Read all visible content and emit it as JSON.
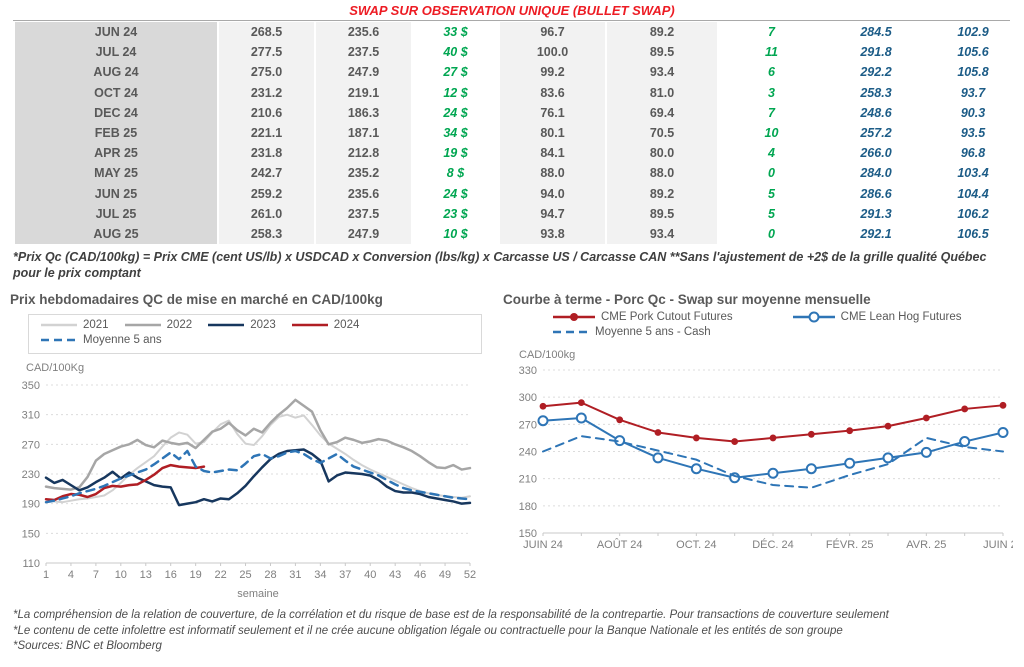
{
  "table": {
    "title": "SWAP SUR OBSERVATION UNIQUE (BULLET SWAP)",
    "title_color": "#ed1c24",
    "green": "#00a651",
    "blue": "#1c5c87",
    "rows": [
      [
        "JUN 24",
        "268.5",
        "235.6",
        "33 $",
        "96.7",
        "89.2",
        "7",
        "284.5",
        "102.9"
      ],
      [
        "JUL 24",
        "277.5",
        "237.5",
        "40 $",
        "100.0",
        "89.5",
        "11",
        "291.8",
        "105.6"
      ],
      [
        "AUG 24",
        "275.0",
        "247.9",
        "27 $",
        "99.2",
        "93.4",
        "6",
        "292.2",
        "105.8"
      ],
      [
        "OCT 24",
        "231.2",
        "219.1",
        "12 $",
        "83.6",
        "81.0",
        "3",
        "258.3",
        "93.7"
      ],
      [
        "DEC 24",
        "210.6",
        "186.3",
        "24 $",
        "76.1",
        "69.4",
        "7",
        "248.6",
        "90.3"
      ],
      [
        "FEB 25",
        "221.1",
        "187.1",
        "34 $",
        "80.1",
        "70.5",
        "10",
        "257.2",
        "93.5"
      ],
      [
        "APR 25",
        "231.8",
        "212.8",
        "19 $",
        "84.1",
        "80.0",
        "4",
        "266.0",
        "96.8"
      ],
      [
        "MAY 25",
        "242.7",
        "235.2",
        "8 $",
        "88.0",
        "88.0",
        "0",
        "284.0",
        "103.4"
      ],
      [
        "JUN 25",
        "259.2",
        "235.6",
        "24 $",
        "94.0",
        "89.2",
        "5",
        "286.6",
        "104.4"
      ],
      [
        "JUL 25",
        "261.0",
        "237.5",
        "23 $",
        "94.7",
        "89.5",
        "5",
        "291.3",
        "106.2"
      ],
      [
        "AUG 25",
        "258.3",
        "247.9",
        "10 $",
        "93.8",
        "93.4",
        "0",
        "292.1",
        "106.5"
      ]
    ],
    "footnote": "*Prix Qc (CAD/100kg) = Prix CME (cent US/lb) x USDCAD x Conversion (lbs/kg) x Carcasse US / Carcasse CAN **Sans l'ajustement de +2$ de la grille qualité Québec pour le prix comptant"
  },
  "chart_data": [
    {
      "type": "line",
      "title": "Prix hebdomadaires QC de mise en marché en CAD/100kg",
      "ylabel": "CAD/100Kg",
      "xlabel": "semaine",
      "ylim": [
        110,
        350
      ],
      "yticks": [
        110,
        150,
        190,
        230,
        270,
        310,
        350
      ],
      "xticks": [
        1,
        4,
        7,
        10,
        13,
        16,
        19,
        22,
        25,
        28,
        31,
        34,
        37,
        40,
        43,
        46,
        49,
        52
      ],
      "grid": true,
      "legend_position": "top",
      "series": [
        {
          "name": "2021",
          "color": "#d2d2d2",
          "style": "solid",
          "width": 2,
          "values": [
            196,
            193,
            192,
            194,
            196,
            197,
            199,
            201,
            208,
            218,
            229,
            238,
            246,
            254,
            267,
            279,
            286,
            283,
            271,
            273,
            286,
            297,
            302,
            284,
            271,
            269,
            281,
            296,
            307,
            310,
            306,
            309,
            296,
            282,
            271,
            264,
            257,
            249,
            242,
            236,
            231,
            226,
            221,
            216,
            211,
            207,
            204,
            202,
            200,
            199,
            198,
            200
          ]
        },
        {
          "name": "2022",
          "color": "#a6a6a6",
          "style": "solid",
          "width": 2.5,
          "values": [
            213,
            211,
            210,
            209,
            212,
            226,
            248,
            257,
            262,
            267,
            270,
            276,
            269,
            266,
            275,
            272,
            270,
            272,
            265,
            276,
            287,
            291,
            299,
            289,
            282,
            291,
            286,
            299,
            310,
            319,
            330,
            322,
            314,
            289,
            270,
            273,
            279,
            276,
            272,
            274,
            277,
            275,
            270,
            266,
            261,
            254,
            246,
            239,
            238,
            242,
            236,
            238
          ]
        },
        {
          "name": "2023",
          "color": "#17375e",
          "style": "solid",
          "width": 2.5,
          "values": [
            225,
            218,
            222,
            215,
            208,
            212,
            219,
            225,
            233,
            224,
            232,
            225,
            220,
            215,
            213,
            212,
            188,
            190,
            192,
            196,
            193,
            197,
            196,
            204,
            214,
            227,
            239,
            250,
            257,
            261,
            262,
            263,
            257,
            248,
            220,
            228,
            232,
            231,
            230,
            228,
            222,
            213,
            207,
            205,
            205,
            203,
            199,
            197,
            195,
            193,
            190,
            191
          ]
        },
        {
          "name": "2024",
          "color": "#b01e24",
          "style": "solid",
          "width": 2.5,
          "values": [
            196,
            195,
            200,
            203,
            202,
            199,
            203,
            211,
            214,
            213,
            215,
            216,
            222,
            229,
            238,
            242,
            240,
            239,
            238,
            240
          ]
        },
        {
          "name": "Moyenne 5 ans",
          "color": "#2e75b6",
          "style": "dashed",
          "width": 2.5,
          "values": [
            192,
            194,
            197,
            200,
            204,
            207,
            210,
            214,
            219,
            224,
            228,
            232,
            236,
            243,
            251,
            259,
            250,
            261,
            240,
            234,
            232,
            234,
            236,
            235,
            244,
            254,
            257,
            251,
            254,
            259,
            261,
            257,
            250,
            245,
            251,
            257,
            248,
            240,
            236,
            232,
            228,
            222,
            216,
            211,
            208,
            206,
            204,
            202,
            200,
            198,
            197,
            196
          ]
        }
      ]
    },
    {
      "type": "line",
      "title": "Courbe à terme - Porc Qc - Swap sur moyenne mensuelle",
      "ylabel": "CAD/100kg",
      "xlabel": "",
      "ylim": [
        150,
        330
      ],
      "yticks": [
        150,
        180,
        210,
        240,
        270,
        300,
        330
      ],
      "x_labels": [
        "JUIN 24",
        "AOÛT 24",
        "OCT. 24",
        "DÉC. 24",
        "FÉVR. 25",
        "AVR. 25",
        "JUIN 25"
      ],
      "grid": true,
      "legend_position": "top",
      "series": [
        {
          "name": "CME Pork Cutout Futures",
          "color": "#b01e24",
          "style": "solid",
          "width": 2,
          "marker": "filled",
          "values": [
            290,
            294,
            275,
            261,
            255,
            251,
            255,
            259,
            263,
            268,
            277,
            287,
            291
          ]
        },
        {
          "name": "CME Lean Hog Futures",
          "color": "#2e75b6",
          "style": "solid",
          "width": 2,
          "marker": "open",
          "values": [
            274,
            277,
            252,
            233,
            221,
            211,
            216,
            221,
            227,
            233,
            239,
            251,
            261
          ]
        },
        {
          "name": "Moyenne 5 ans - Cash",
          "color": "#2e75b6",
          "style": "dashed",
          "width": 2,
          "values": [
            240,
            257,
            251,
            241,
            231,
            213,
            203,
            200,
            214,
            226,
            255,
            245,
            240
          ]
        }
      ]
    }
  ],
  "footnotes": [
    "*La compréhension de la relation de couverture, de la corrélation et du risque de base est de la responsabilité de la contrepartie. Pour transactions de couverture seulement",
    "*Le contenu de cette infolettre est informatif seulement et il ne crée aucune obligation légale ou contractuelle pour la Banque Nationale et les entités de son groupe",
    "*Sources: BNC et Bloomberg"
  ]
}
